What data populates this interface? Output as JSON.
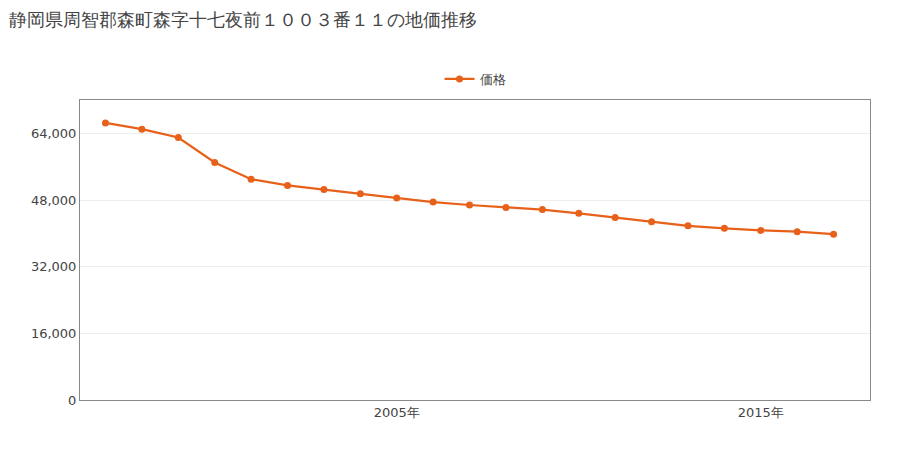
{
  "chart_data": {
    "type": "line",
    "title": "静岡県周智郡森町森字十七夜前１００３番１１の地価推移",
    "x": [
      1997,
      1998,
      1999,
      2000,
      2001,
      2002,
      2003,
      2004,
      2005,
      2006,
      2007,
      2008,
      2009,
      2010,
      2011,
      2012,
      2013,
      2014,
      2015,
      2016,
      2017
    ],
    "series": [
      {
        "name": "価格",
        "color": "#E8611A",
        "marker": "circle",
        "line_style": "solid",
        "values": [
          66500,
          65000,
          63000,
          57000,
          53000,
          51500,
          50500,
          49500,
          48500,
          47500,
          46800,
          46200,
          45700,
          44800,
          43800,
          42800,
          41800,
          41200,
          40700,
          40400,
          39800
        ]
      }
    ],
    "xlim": [
      1996.3,
      2018.0
    ],
    "xticks": [
      {
        "value": 2005,
        "label": "2005年"
      },
      {
        "value": 2015,
        "label": "2015年"
      }
    ],
    "ylim": [
      0,
      72000
    ],
    "yticks": [
      0,
      {
        "value": 16000,
        "label": "16,000"
      },
      {
        "value": 32000,
        "label": "32,000"
      },
      {
        "value": 48000,
        "label": "48,000"
      },
      {
        "value": 64000,
        "label": "64,000"
      }
    ],
    "grid": true,
    "legend": "top"
  }
}
